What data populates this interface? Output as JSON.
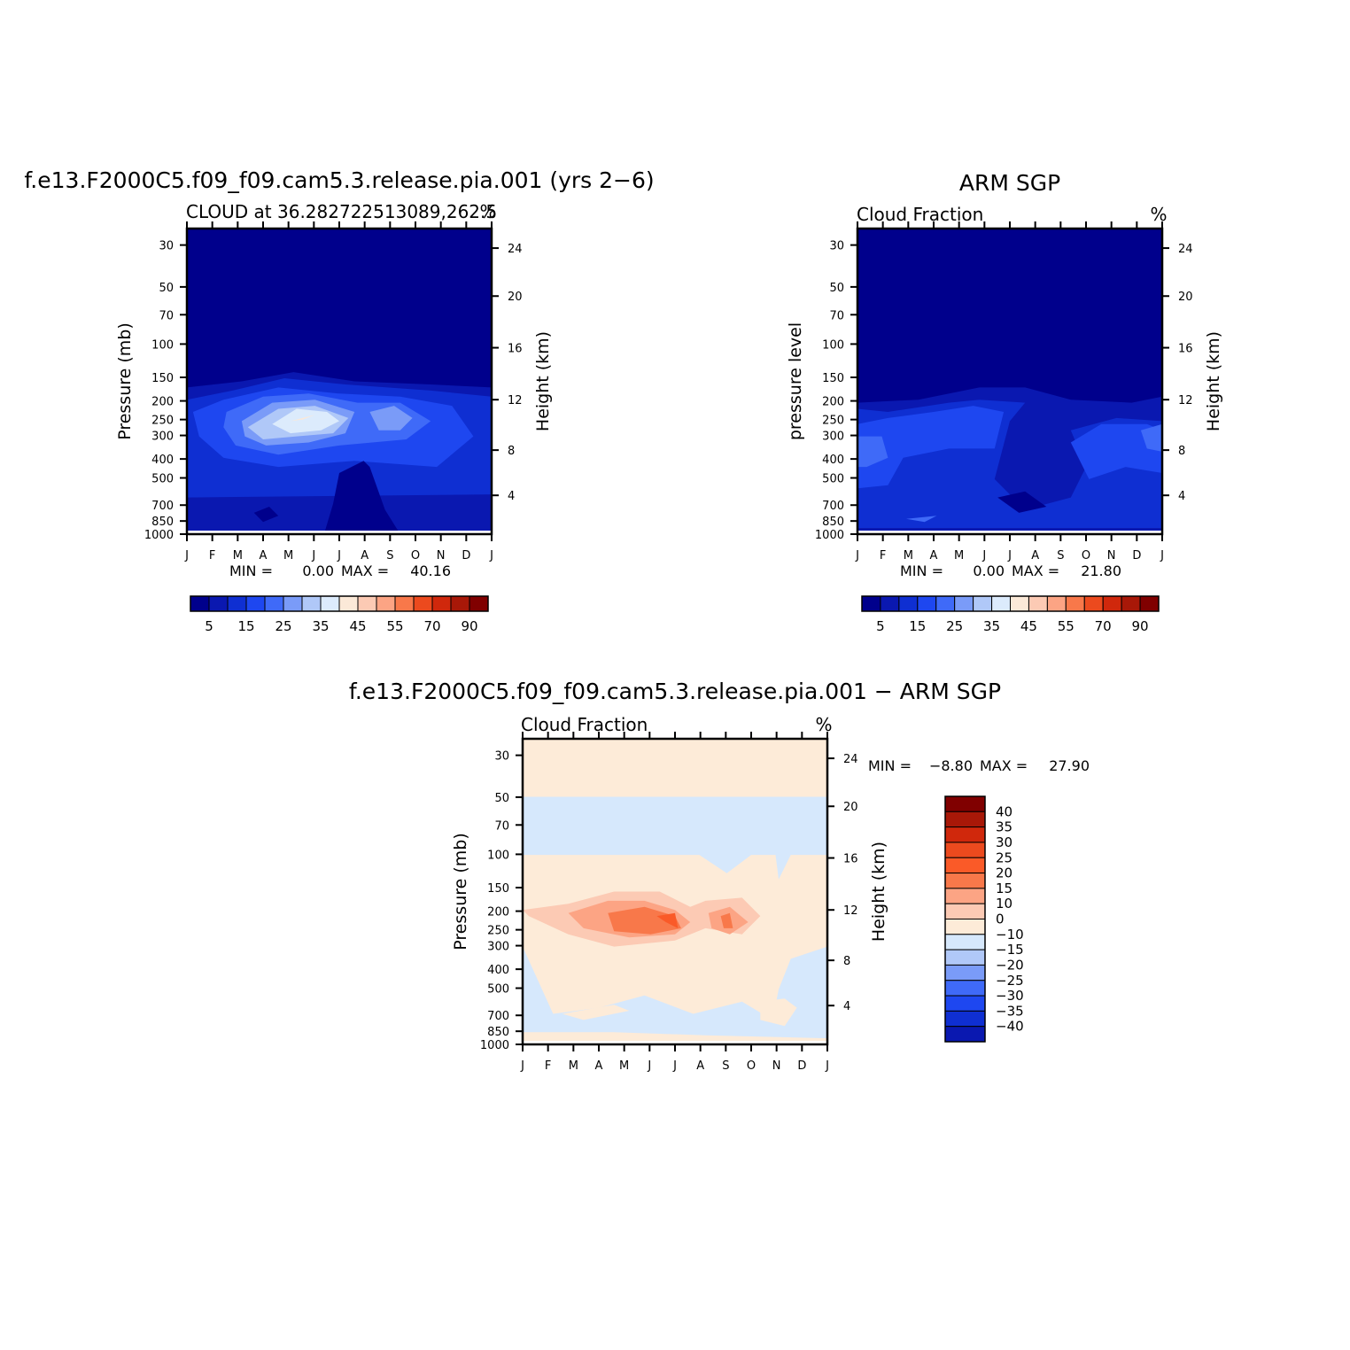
{
  "page": {
    "background": "#ffffff"
  },
  "chart_data": [
    {
      "type": "heatmap",
      "panel": "model",
      "title": "f.e13.F2000C5.f09_f09.cam5.3.release.pia.001 (yrs 2−6)",
      "subtitle_left": "CLOUD at 36.282722513089,262.5",
      "subtitle_right": "%",
      "ylabel": "Pressure (mb)",
      "ylabel_right": "Height (km)",
      "x_ticks": [
        "J",
        "F",
        "M",
        "A",
        "M",
        "J",
        "J",
        "A",
        "S",
        "O",
        "N",
        "D",
        "J"
      ],
      "y_ticks": [
        "30",
        "50",
        "70",
        "100",
        "150",
        "200",
        "250",
        "300",
        "400",
        "500",
        "700",
        "850",
        "1000"
      ],
      "y_right_ticks": [
        "24",
        "20",
        "16",
        "12",
        "8",
        "4"
      ],
      "stats": {
        "min_label": "MIN =",
        "min": "0.00",
        "max_label": "MAX =",
        "max": "40.16"
      },
      "colorbar": {
        "orientation": "horizontal",
        "labels": [
          "5",
          "15",
          "25",
          "35",
          "45",
          "55",
          "70",
          "90"
        ],
        "colors": [
          "#00008c",
          "#0a18b0",
          "#0f2fd2",
          "#1e47f0",
          "#3f6af8",
          "#7a9bf8",
          "#b0c8f8",
          "#dcebfc",
          "#fbe9d8",
          "#fccab4",
          "#fca484",
          "#f8784a",
          "#ec4a1e",
          "#d0280c",
          "#a81808",
          "#800000"
        ]
      },
      "bands": [
        {
          "level": 0,
          "color": "#00008c"
        },
        {
          "level": 1,
          "color": "#0a18b0"
        },
        {
          "level": 2,
          "color": "#0f2fd2"
        },
        {
          "level": 3,
          "color": "#1e47f0"
        },
        {
          "level": 4,
          "color": "#3f6af8"
        },
        {
          "level": 5,
          "color": "#7a9bf8"
        },
        {
          "level": 6,
          "color": "#b0c8f8"
        },
        {
          "level": 7,
          "color": "#dcebfc"
        },
        {
          "level": 8,
          "color": "#fbe9d8"
        }
      ]
    },
    {
      "type": "heatmap",
      "panel": "obs",
      "title": "ARM SGP",
      "subtitle_left": "Cloud Fraction",
      "subtitle_right": "%",
      "ylabel": "pressure level",
      "ylabel_right": "Height (km)",
      "x_ticks": [
        "J",
        "F",
        "M",
        "A",
        "M",
        "J",
        "J",
        "A",
        "S",
        "O",
        "N",
        "D",
        "J"
      ],
      "y_ticks": [
        "30",
        "50",
        "70",
        "100",
        "150",
        "200",
        "250",
        "300",
        "400",
        "500",
        "700",
        "850",
        "1000"
      ],
      "y_right_ticks": [
        "24",
        "20",
        "16",
        "12",
        "8",
        "4"
      ],
      "stats": {
        "min_label": "MIN =",
        "min": "0.00",
        "max_label": "MAX =",
        "max": "21.80"
      },
      "colorbar": {
        "orientation": "horizontal",
        "labels": [
          "5",
          "15",
          "25",
          "35",
          "45",
          "55",
          "70",
          "90"
        ],
        "colors": [
          "#00008c",
          "#0a18b0",
          "#0f2fd2",
          "#1e47f0",
          "#3f6af8",
          "#7a9bf8",
          "#b0c8f8",
          "#dcebfc",
          "#fbe9d8",
          "#fccab4",
          "#fca484",
          "#f8784a",
          "#ec4a1e",
          "#d0280c",
          "#a81808",
          "#800000"
        ]
      },
      "bands": [
        {
          "level": 0,
          "color": "#00008c"
        },
        {
          "level": 1,
          "color": "#0a18b0"
        },
        {
          "level": 2,
          "color": "#0f2fd2"
        },
        {
          "level": 3,
          "color": "#1e47f0"
        },
        {
          "level": 4,
          "color": "#3f6af8"
        }
      ]
    },
    {
      "type": "heatmap",
      "panel": "diff",
      "title": "f.e13.F2000C5.f09_f09.cam5.3.release.pia.001 − ARM SGP",
      "subtitle_left": "Cloud Fraction",
      "subtitle_right": "%",
      "ylabel": "Pressure (mb)",
      "ylabel_right": "Height (km)",
      "x_ticks": [
        "J",
        "F",
        "M",
        "A",
        "M",
        "J",
        "J",
        "A",
        "S",
        "O",
        "N",
        "D",
        "J"
      ],
      "y_ticks": [
        "30",
        "50",
        "70",
        "100",
        "150",
        "200",
        "250",
        "300",
        "400",
        "500",
        "700",
        "850",
        "1000"
      ],
      "y_right_ticks": [
        "24",
        "20",
        "16",
        "12",
        "8",
        "4"
      ],
      "stats": {
        "min_label": "MIN =",
        "min": "−8.80",
        "max_label": "MAX =",
        "max": "27.90"
      },
      "colorbar": {
        "orientation": "vertical",
        "labels": [
          "40",
          "35",
          "30",
          "25",
          "20",
          "15",
          "10",
          "0",
          "−10",
          "−15",
          "−20",
          "−25",
          "−30",
          "−35",
          "−40"
        ],
        "colors": [
          "#800000",
          "#a81808",
          "#d0280c",
          "#ec4a1e",
          "#fa5a28",
          "#f8784a",
          "#fca484",
          "#fccab4",
          "#fdebd8",
          "#d6e8fc",
          "#b0c8f8",
          "#7a9bf8",
          "#3f6af8",
          "#1e47f0",
          "#0f2fd2",
          "#0a18b0"
        ]
      },
      "bands": [
        {
          "level": 0,
          "color": "#d6e8fc"
        },
        {
          "level": 1,
          "color": "#fdebd8"
        },
        {
          "level": 2,
          "color": "#fccab4"
        },
        {
          "level": 3,
          "color": "#fca484"
        },
        {
          "level": 4,
          "color": "#f8784a"
        },
        {
          "level": 5,
          "color": "#fa5a28"
        }
      ]
    }
  ]
}
